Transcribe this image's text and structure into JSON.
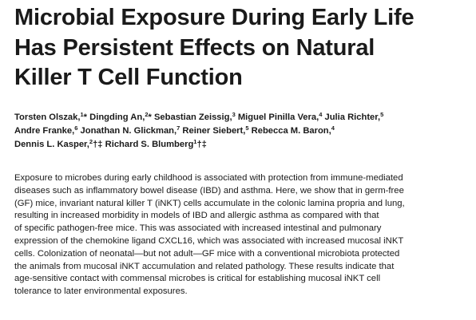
{
  "title": {
    "lines": [
      "Microbial Exposure During Early Life",
      "Has Persistent Effects on Natural",
      "Killer T Cell Function"
    ]
  },
  "authors": {
    "list": [
      {
        "name": "Torsten Olszak,",
        "aff": "1",
        "mark": "*"
      },
      {
        "name": "Dingding An,",
        "aff": "2",
        "mark": "*"
      },
      {
        "name": "Sebastian Zeissig,",
        "aff": "3",
        "mark": ""
      },
      {
        "name": "Miguel Pinilla Vera,",
        "aff": "4",
        "mark": ""
      },
      {
        "name": "Julia Richter,",
        "aff": "5",
        "mark": ""
      },
      {
        "name": "Andre Franke,",
        "aff": "6",
        "mark": ""
      },
      {
        "name": "Jonathan N. Glickman,",
        "aff": "7",
        "mark": ""
      },
      {
        "name": "Reiner Siebert,",
        "aff": "5",
        "mark": ""
      },
      {
        "name": "Rebecca M. Baron,",
        "aff": "4",
        "mark": ""
      },
      {
        "name": "Dennis L. Kasper,",
        "aff": "2",
        "mark": "†‡"
      },
      {
        "name": "Richard S. Blumberg",
        "aff": "1",
        "mark": "†‡"
      }
    ]
  },
  "abstract": {
    "lines": [
      "Exposure to microbes during early childhood is associated with protection from immune-mediated",
      "diseases such as inflammatory bowel disease (IBD) and asthma. Here, we show that in germ-free",
      "(GF) mice, invariant natural killer T (iNKT) cells accumulate in the colonic lamina propria and lung,",
      "resulting in increased morbidity in models of IBD and allergic asthma as compared with that",
      "of specific pathogen-free mice. This was associated with increased intestinal and pulmonary",
      "expression of the chemokine ligand CXCL16, which was associated with increased mucosal iNKT",
      "cells. Colonization of neonatal—but not adult—GF mice with a conventional microbiota protected",
      "the animals from mucosal iNKT accumulation and related pathology. These results indicate that",
      "age-sensitive contact with commensal microbes is critical for establishing mucosal iNKT cell",
      "tolerance to later environmental exposures."
    ]
  }
}
